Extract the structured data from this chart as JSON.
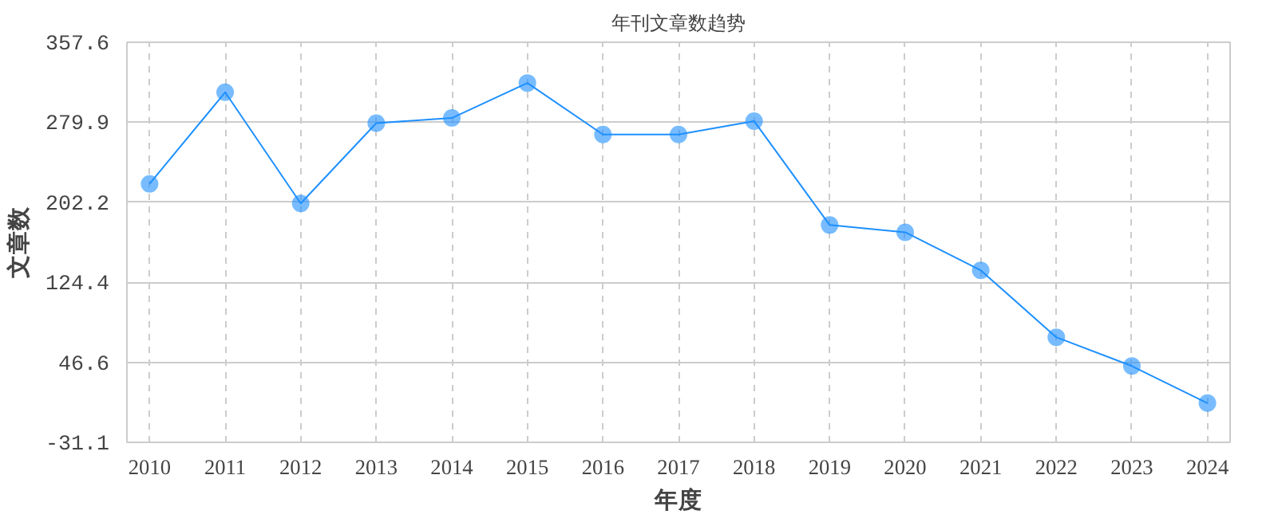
{
  "chart_data": {
    "type": "line",
    "title": "年刊文章数趋势",
    "xlabel": "年度",
    "ylabel": "文章数",
    "categories": [
      "2010",
      "2011",
      "2012",
      "2013",
      "2014",
      "2015",
      "2016",
      "2017",
      "2018",
      "2019",
      "2020",
      "2021",
      "2022",
      "2023",
      "2024"
    ],
    "series": [
      {
        "color": "#1e90ff",
        "values": [
          220,
          309,
          201,
          279,
          284,
          318,
          268,
          268,
          281,
          180,
          173,
          136,
          71,
          43,
          7
        ]
      }
    ],
    "ylim": [
      -31.1,
      357.6
    ],
    "yticks": [
      -31.1,
      46.6,
      124.4,
      202.2,
      279.9,
      357.6
    ],
    "grid": true,
    "marker": "circle",
    "line_style": "solid"
  }
}
